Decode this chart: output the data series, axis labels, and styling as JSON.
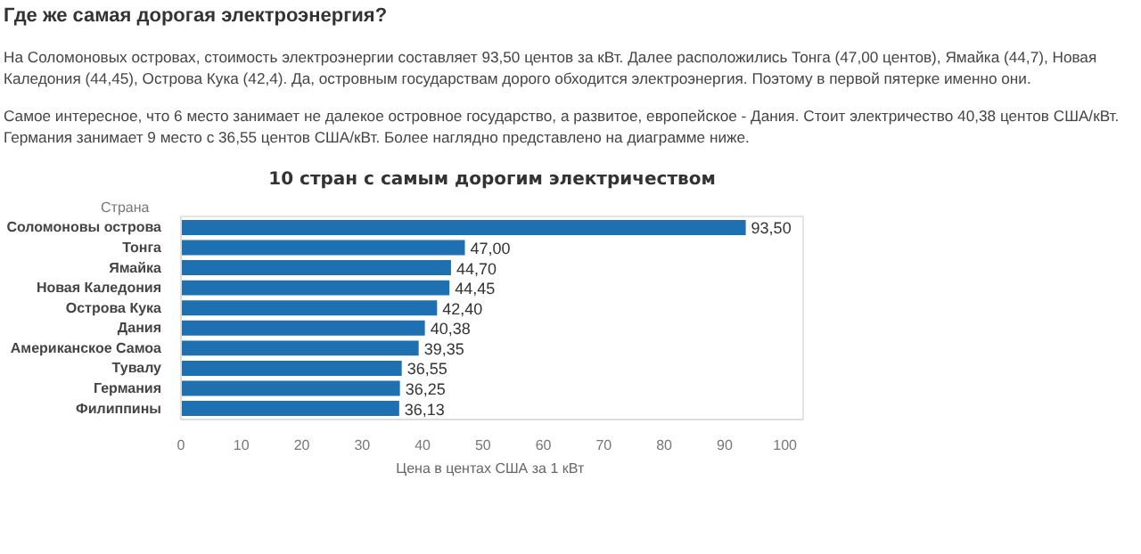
{
  "chart_data": {
    "type": "bar",
    "orientation": "horizontal",
    "title": "10 стран с самым дорогим электричеством",
    "xlabel": "Цена в  центах США за 1 кВт",
    "ylabel": "Страна",
    "annotations": [
      "Где же самая дорогая электроэнергия?",
      "На Соломоновых островах, стоимость электроэнергии составляет 93,50 центов за кВт. Далее расположились Тонга (47,00 центов), Ямайка (44,7), Новая Каледония (44,45), Острова Кука (42,4). Да, островным государствам дорого обходится электроэнергия. Поэтому в первой пятерке именно они.",
      "Самое интересное, что 6 место занимает не далекое островное государство, а развитое, европейское - Дания. Стоит электричество 40,38 центов США/кВт. Германия занимает 9 место с 36,55 центов США/кВт. Более наглядно представлено на диаграмме ниже."
    ],
    "categories": [
      "Соломоновы острова",
      "Тонга",
      "Ямайка",
      "Новая Каледония",
      "Острова Кука",
      "Дания",
      "Американское Самоа",
      "Тувалу",
      "Германия",
      "Филиппины"
    ],
    "values": [
      93.5,
      47.0,
      44.7,
      44.45,
      42.4,
      40.38,
      39.35,
      36.55,
      36.25,
      36.13
    ],
    "value_labels": [
      "93,50",
      "47,00",
      "44,70",
      "44,45",
      "42,40",
      "40,38",
      "39,35",
      "36,55",
      "36,25",
      "36,13"
    ],
    "color": "#1f70b0",
    "xlim": [
      0,
      103
    ],
    "xticks": [
      0,
      10,
      20,
      30,
      40,
      50,
      60,
      70,
      80,
      90,
      100
    ],
    "grid": false
  }
}
